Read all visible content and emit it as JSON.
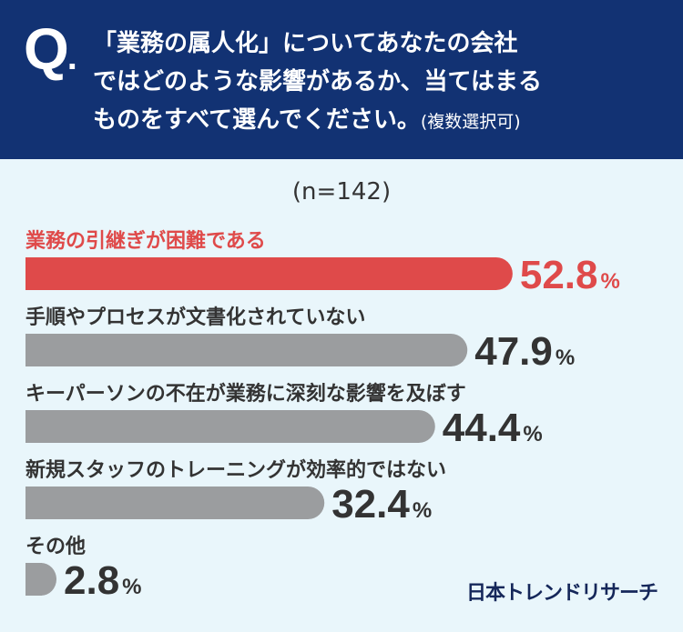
{
  "header": {
    "q_mark": "Q",
    "question_line1": "「業務の属人化」についてあなたの会社",
    "question_line2": "ではどのような影響があるか、当てはまる",
    "question_line3": "ものをすべて選んでください。",
    "question_note": "(複数選択可)"
  },
  "sample": "(n=142)",
  "brand": "日本トレンドリサーチ",
  "colors": {
    "header_bg": "#123273",
    "highlight": "#df4a4a",
    "bar_gray": "#9b9d9f",
    "text_dark": "#333333",
    "page_bg": "#e9f6fb"
  },
  "chart_data": {
    "type": "bar",
    "orientation": "horizontal",
    "title": "",
    "xlabel": "",
    "ylabel": "",
    "unit": "%",
    "xlim": [
      0,
      100
    ],
    "categories": [
      "業務の引継ぎが困難である",
      "手順やプロセスが文書化されていない",
      "キーパーソンの不在が業務に深刻な影響を及ぼす",
      "新規スタッフのトレーニングが効率的ではない",
      "その他"
    ],
    "values": [
      52.8,
      47.9,
      44.4,
      32.4,
      2.8
    ],
    "value_labels": [
      "52.8",
      "47.9",
      "44.4",
      "32.4",
      "2.8"
    ],
    "highlight_index": 0
  }
}
